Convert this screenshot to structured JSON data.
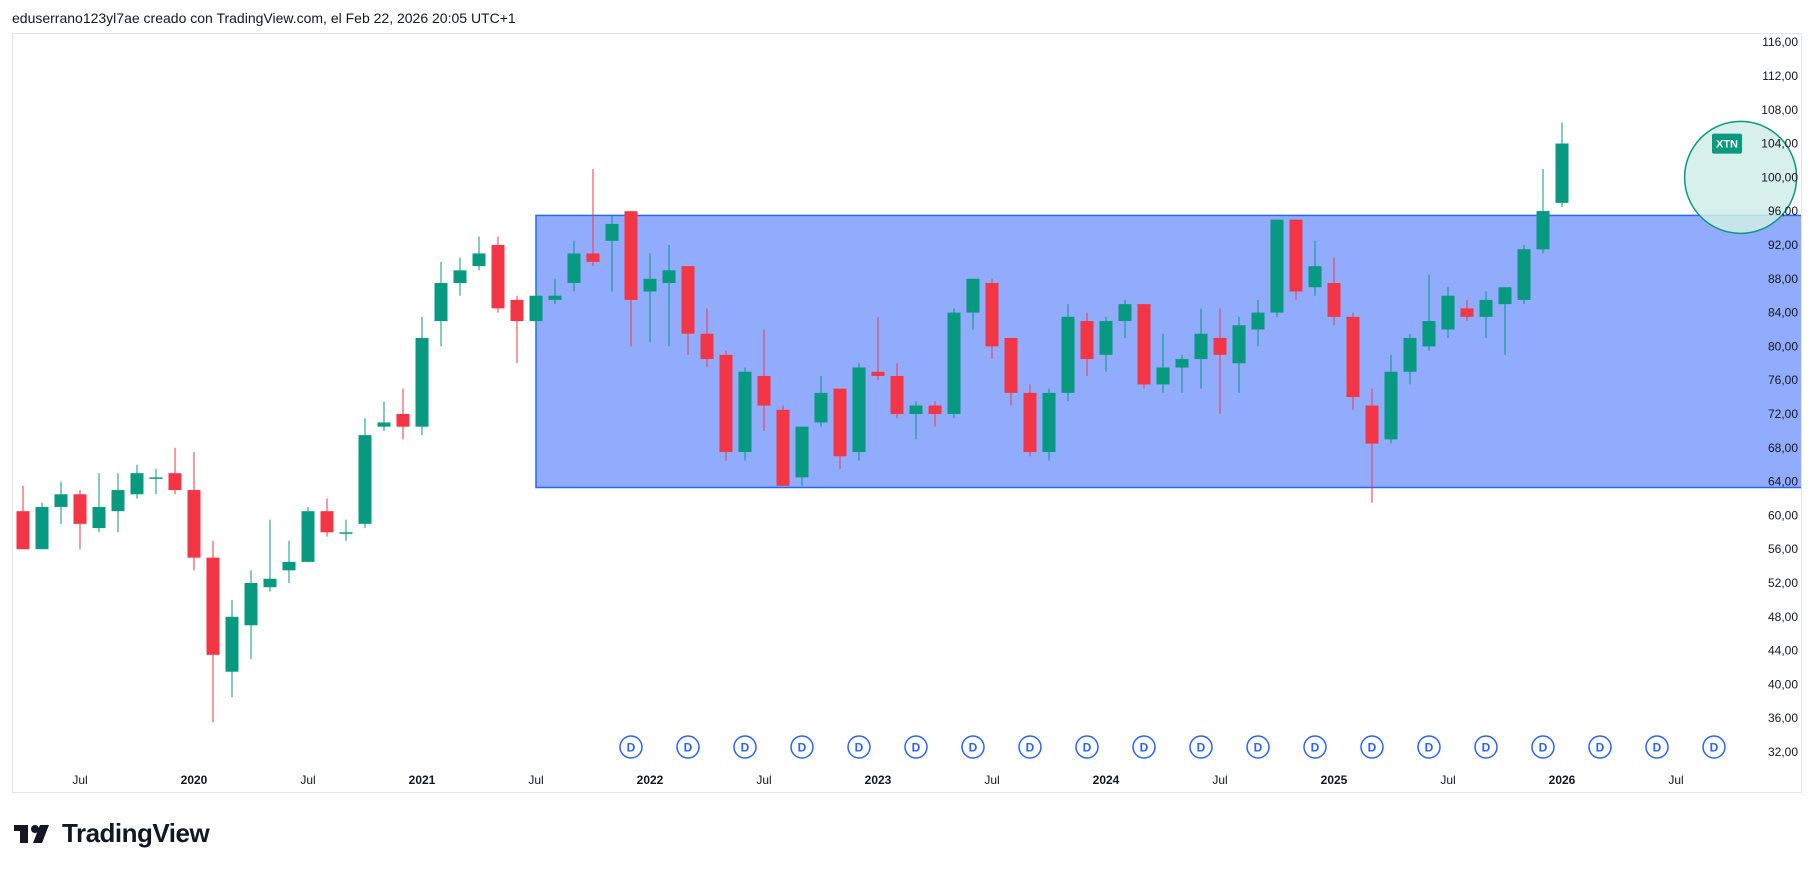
{
  "header": {
    "text": "eduserrano123yl7ae creado con TradingView.com, el Feb 22, 2026 20:05 UTC+1"
  },
  "brand": {
    "name": "TradingView",
    "logo_icon": "tradingview-logo-icon"
  },
  "colors": {
    "up": "#089981",
    "down": "#f23645",
    "range_fill": "#91acfc",
    "range_border": "#2962ff",
    "highlight_fill": "#d1ede8",
    "highlight_border": "#089981",
    "badge_bg": "#089981",
    "dividend": "#2962ff"
  },
  "chart_data": {
    "type": "candlestick",
    "symbol": "XTN",
    "interval": "monthly",
    "ylim": [
      30,
      118
    ],
    "price_ticks": [
      "116,00",
      "112,00",
      "108,00",
      "104,00",
      "100,00",
      "96,00",
      "92,00",
      "88,00",
      "84,00",
      "80,00",
      "76,00",
      "72,00",
      "68,00",
      "64,00",
      "60,00",
      "56,00",
      "52,00",
      "48,00",
      "44,00",
      "40,00",
      "36,00",
      "32,00"
    ],
    "time_ticks": [
      {
        "label": "Jul",
        "month": -6,
        "year": false
      },
      {
        "label": "2020",
        "month": 0,
        "year": true
      },
      {
        "label": "Jul",
        "month": 6,
        "year": false
      },
      {
        "label": "2021",
        "month": 12,
        "year": true
      },
      {
        "label": "Jul",
        "month": 18,
        "year": false
      },
      {
        "label": "2022",
        "month": 24,
        "year": true
      },
      {
        "label": "Jul",
        "month": 30,
        "year": false
      },
      {
        "label": "2023",
        "month": 36,
        "year": true
      },
      {
        "label": "Jul",
        "month": 42,
        "year": false
      },
      {
        "label": "2024",
        "month": 48,
        "year": true
      },
      {
        "label": "Jul",
        "month": 54,
        "year": false
      },
      {
        "label": "2025",
        "month": 60,
        "year": true
      },
      {
        "label": "Jul",
        "month": 66,
        "year": false
      },
      {
        "label": "2026",
        "month": 72,
        "year": true
      },
      {
        "label": "Jul",
        "month": 78,
        "year": false
      }
    ],
    "month_zero": "2020-01",
    "candles": [
      [
        63.0,
        65.5,
        61.0,
        60.5
      ],
      [
        60.5,
        63.5,
        56.0,
        56.0
      ],
      [
        56.0,
        61.5,
        56.0,
        61.0
      ],
      [
        61.0,
        64.0,
        59.0,
        62.5
      ],
      [
        62.5,
        63.0,
        56.0,
        59.0
      ],
      [
        58.5,
        65.0,
        58.0,
        61.0
      ],
      [
        60.5,
        65.0,
        58.0,
        63.0
      ],
      [
        62.5,
        66.0,
        62.0,
        65.0
      ],
      [
        64.5,
        65.5,
        62.5,
        64.5
      ],
      [
        65.0,
        68.0,
        62.5,
        63.0
      ],
      [
        63.0,
        67.5,
        53.5,
        55.0
      ],
      [
        55.0,
        57.0,
        35.5,
        43.5
      ],
      [
        41.5,
        50.0,
        38.5,
        48.0
      ],
      [
        47.0,
        53.5,
        43.0,
        52.0
      ],
      [
        51.5,
        59.5,
        51.0,
        52.5
      ],
      [
        53.5,
        57.0,
        52.0,
        54.5
      ],
      [
        54.5,
        61.0,
        54.5,
        60.5
      ],
      [
        60.5,
        62.0,
        57.5,
        58.0
      ],
      [
        58.0,
        59.5,
        57.0,
        58.0
      ],
      [
        59.0,
        71.5,
        58.5,
        69.5
      ],
      [
        70.5,
        73.5,
        70.0,
        71.0
      ],
      [
        72.0,
        75.0,
        69.0,
        70.5
      ],
      [
        70.5,
        83.5,
        69.5,
        81.0
      ],
      [
        83.0,
        90.0,
        80.0,
        87.5
      ],
      [
        87.5,
        90.5,
        86.0,
        89.0
      ],
      [
        89.5,
        93.0,
        89.0,
        91.0
      ],
      [
        92.0,
        93.0,
        84.0,
        84.5
      ],
      [
        85.5,
        86.0,
        78.0,
        83.0
      ],
      [
        83.0,
        87.0,
        82.0,
        86.0
      ],
      [
        85.5,
        88.0,
        85.0,
        86.0
      ],
      [
        87.5,
        92.5,
        86.5,
        91.0
      ],
      [
        91.0,
        101.0,
        89.5,
        90.0
      ],
      [
        92.5,
        95.5,
        86.5,
        94.5
      ],
      [
        96.0,
        96.0,
        80.0,
        85.5
      ],
      [
        86.5,
        91.0,
        80.5,
        88.0
      ],
      [
        87.5,
        92.0,
        80.0,
        89.0
      ],
      [
        89.5,
        89.5,
        79.0,
        81.5
      ],
      [
        81.5,
        84.5,
        77.5,
        78.5
      ],
      [
        79.0,
        79.5,
        66.5,
        67.5
      ],
      [
        67.5,
        77.5,
        66.5,
        77.0
      ],
      [
        76.5,
        82.0,
        70.0,
        73.0
      ],
      [
        72.5,
        73.0,
        63.5,
        63.5
      ],
      [
        64.5,
        70.5,
        63.5,
        70.5
      ],
      [
        71.0,
        76.5,
        70.5,
        74.5
      ],
      [
        75.0,
        75.0,
        65.5,
        67.0
      ],
      [
        67.5,
        78.0,
        66.5,
        77.5
      ],
      [
        77.0,
        83.5,
        76.0,
        76.5
      ],
      [
        76.5,
        78.0,
        71.5,
        72.0
      ],
      [
        72.0,
        73.5,
        69.0,
        73.0
      ],
      [
        73.0,
        73.5,
        70.5,
        72.0
      ],
      [
        72.0,
        84.5,
        71.5,
        84.0
      ],
      [
        84.0,
        88.0,
        82.0,
        88.0
      ],
      [
        87.5,
        88.0,
        78.5,
        80.0
      ],
      [
        81.0,
        81.0,
        73.0,
        74.5
      ],
      [
        74.5,
        75.5,
        67.0,
        67.5
      ],
      [
        67.5,
        75.0,
        66.5,
        74.5
      ],
      [
        74.5,
        85.0,
        73.5,
        83.5
      ],
      [
        83.0,
        84.0,
        76.5,
        78.5
      ],
      [
        79.0,
        83.5,
        77.0,
        83.0
      ],
      [
        83.0,
        85.5,
        81.0,
        85.0
      ],
      [
        85.0,
        85.0,
        75.0,
        75.5
      ],
      [
        75.5,
        81.5,
        74.5,
        77.5
      ],
      [
        77.5,
        79.0,
        74.5,
        78.5
      ],
      [
        78.5,
        84.5,
        75.0,
        81.5
      ],
      [
        81.0,
        84.5,
        72.0,
        79.0
      ],
      [
        78.0,
        83.5,
        74.5,
        82.5
      ],
      [
        82.0,
        85.5,
        80.0,
        84.0
      ],
      [
        84.0,
        94.5,
        83.5,
        95.0
      ],
      [
        95.0,
        95.0,
        85.5,
        86.5
      ],
      [
        87.0,
        92.5,
        86.0,
        89.5
      ],
      [
        87.5,
        90.5,
        82.5,
        83.5
      ],
      [
        83.5,
        84.0,
        72.5,
        74.0
      ],
      [
        73.0,
        75.0,
        61.5,
        68.5
      ],
      [
        69.0,
        79.0,
        68.5,
        77.0
      ],
      [
        77.0,
        81.5,
        75.5,
        81.0
      ],
      [
        80.0,
        88.5,
        79.5,
        83.0
      ],
      [
        82.0,
        87.0,
        81.0,
        86.0
      ],
      [
        84.5,
        85.5,
        83.0,
        83.5
      ],
      [
        83.5,
        86.5,
        81.0,
        85.5
      ],
      [
        85.0,
        87.0,
        79.0,
        87.0
      ],
      [
        85.5,
        92.0,
        85.0,
        91.5
      ],
      [
        91.5,
        101.0,
        91.0,
        96.0
      ],
      [
        97.0,
        106.5,
        96.5,
        104.0
      ]
    ],
    "range_box": {
      "from_month": 18.0,
      "to_month": 86.0,
      "top": 95.5,
      "bottom": 63.3
    },
    "highlight": {
      "month": 81.4,
      "price": 100.0
    },
    "last_price_badge": "XTN",
    "dividend_marks": {
      "label": "D",
      "months": [
        23,
        26,
        29,
        32,
        35,
        38,
        41,
        44,
        47,
        50,
        53,
        56,
        59,
        62,
        65,
        68,
        71,
        74,
        77,
        80
      ]
    }
  }
}
